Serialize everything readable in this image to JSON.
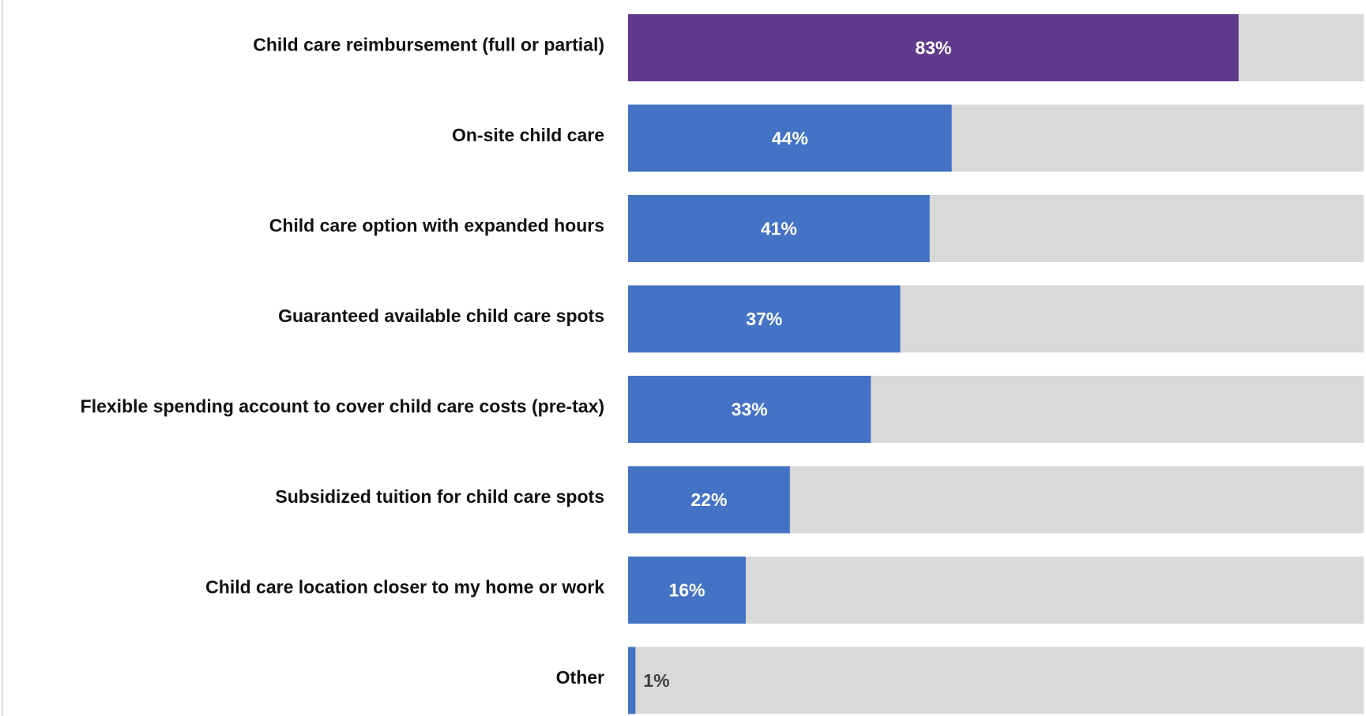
{
  "chart_data": {
    "type": "bar",
    "orientation": "horizontal",
    "categories": [
      "Child care reimbursement (full or partial)",
      "On-site child care",
      "Child care option with expanded hours",
      "Guaranteed available child care spots",
      "Flexible spending account to cover child care costs (pre-tax)",
      "Subsidized tuition for child care spots",
      "Child care location closer to my home or work",
      "Other"
    ],
    "values": [
      83,
      44,
      41,
      37,
      33,
      22,
      16,
      1
    ],
    "value_labels": [
      "83%",
      "44%",
      "41%",
      "37%",
      "33%",
      "22%",
      "16%",
      "1%"
    ],
    "colors": [
      "#613a8c",
      "#4472c4",
      "#4472c4",
      "#4472c4",
      "#4472c4",
      "#4472c4",
      "#4472c4",
      "#4472c4"
    ],
    "background_color": "#d9d9d9",
    "xlim": [
      0,
      100
    ]
  }
}
